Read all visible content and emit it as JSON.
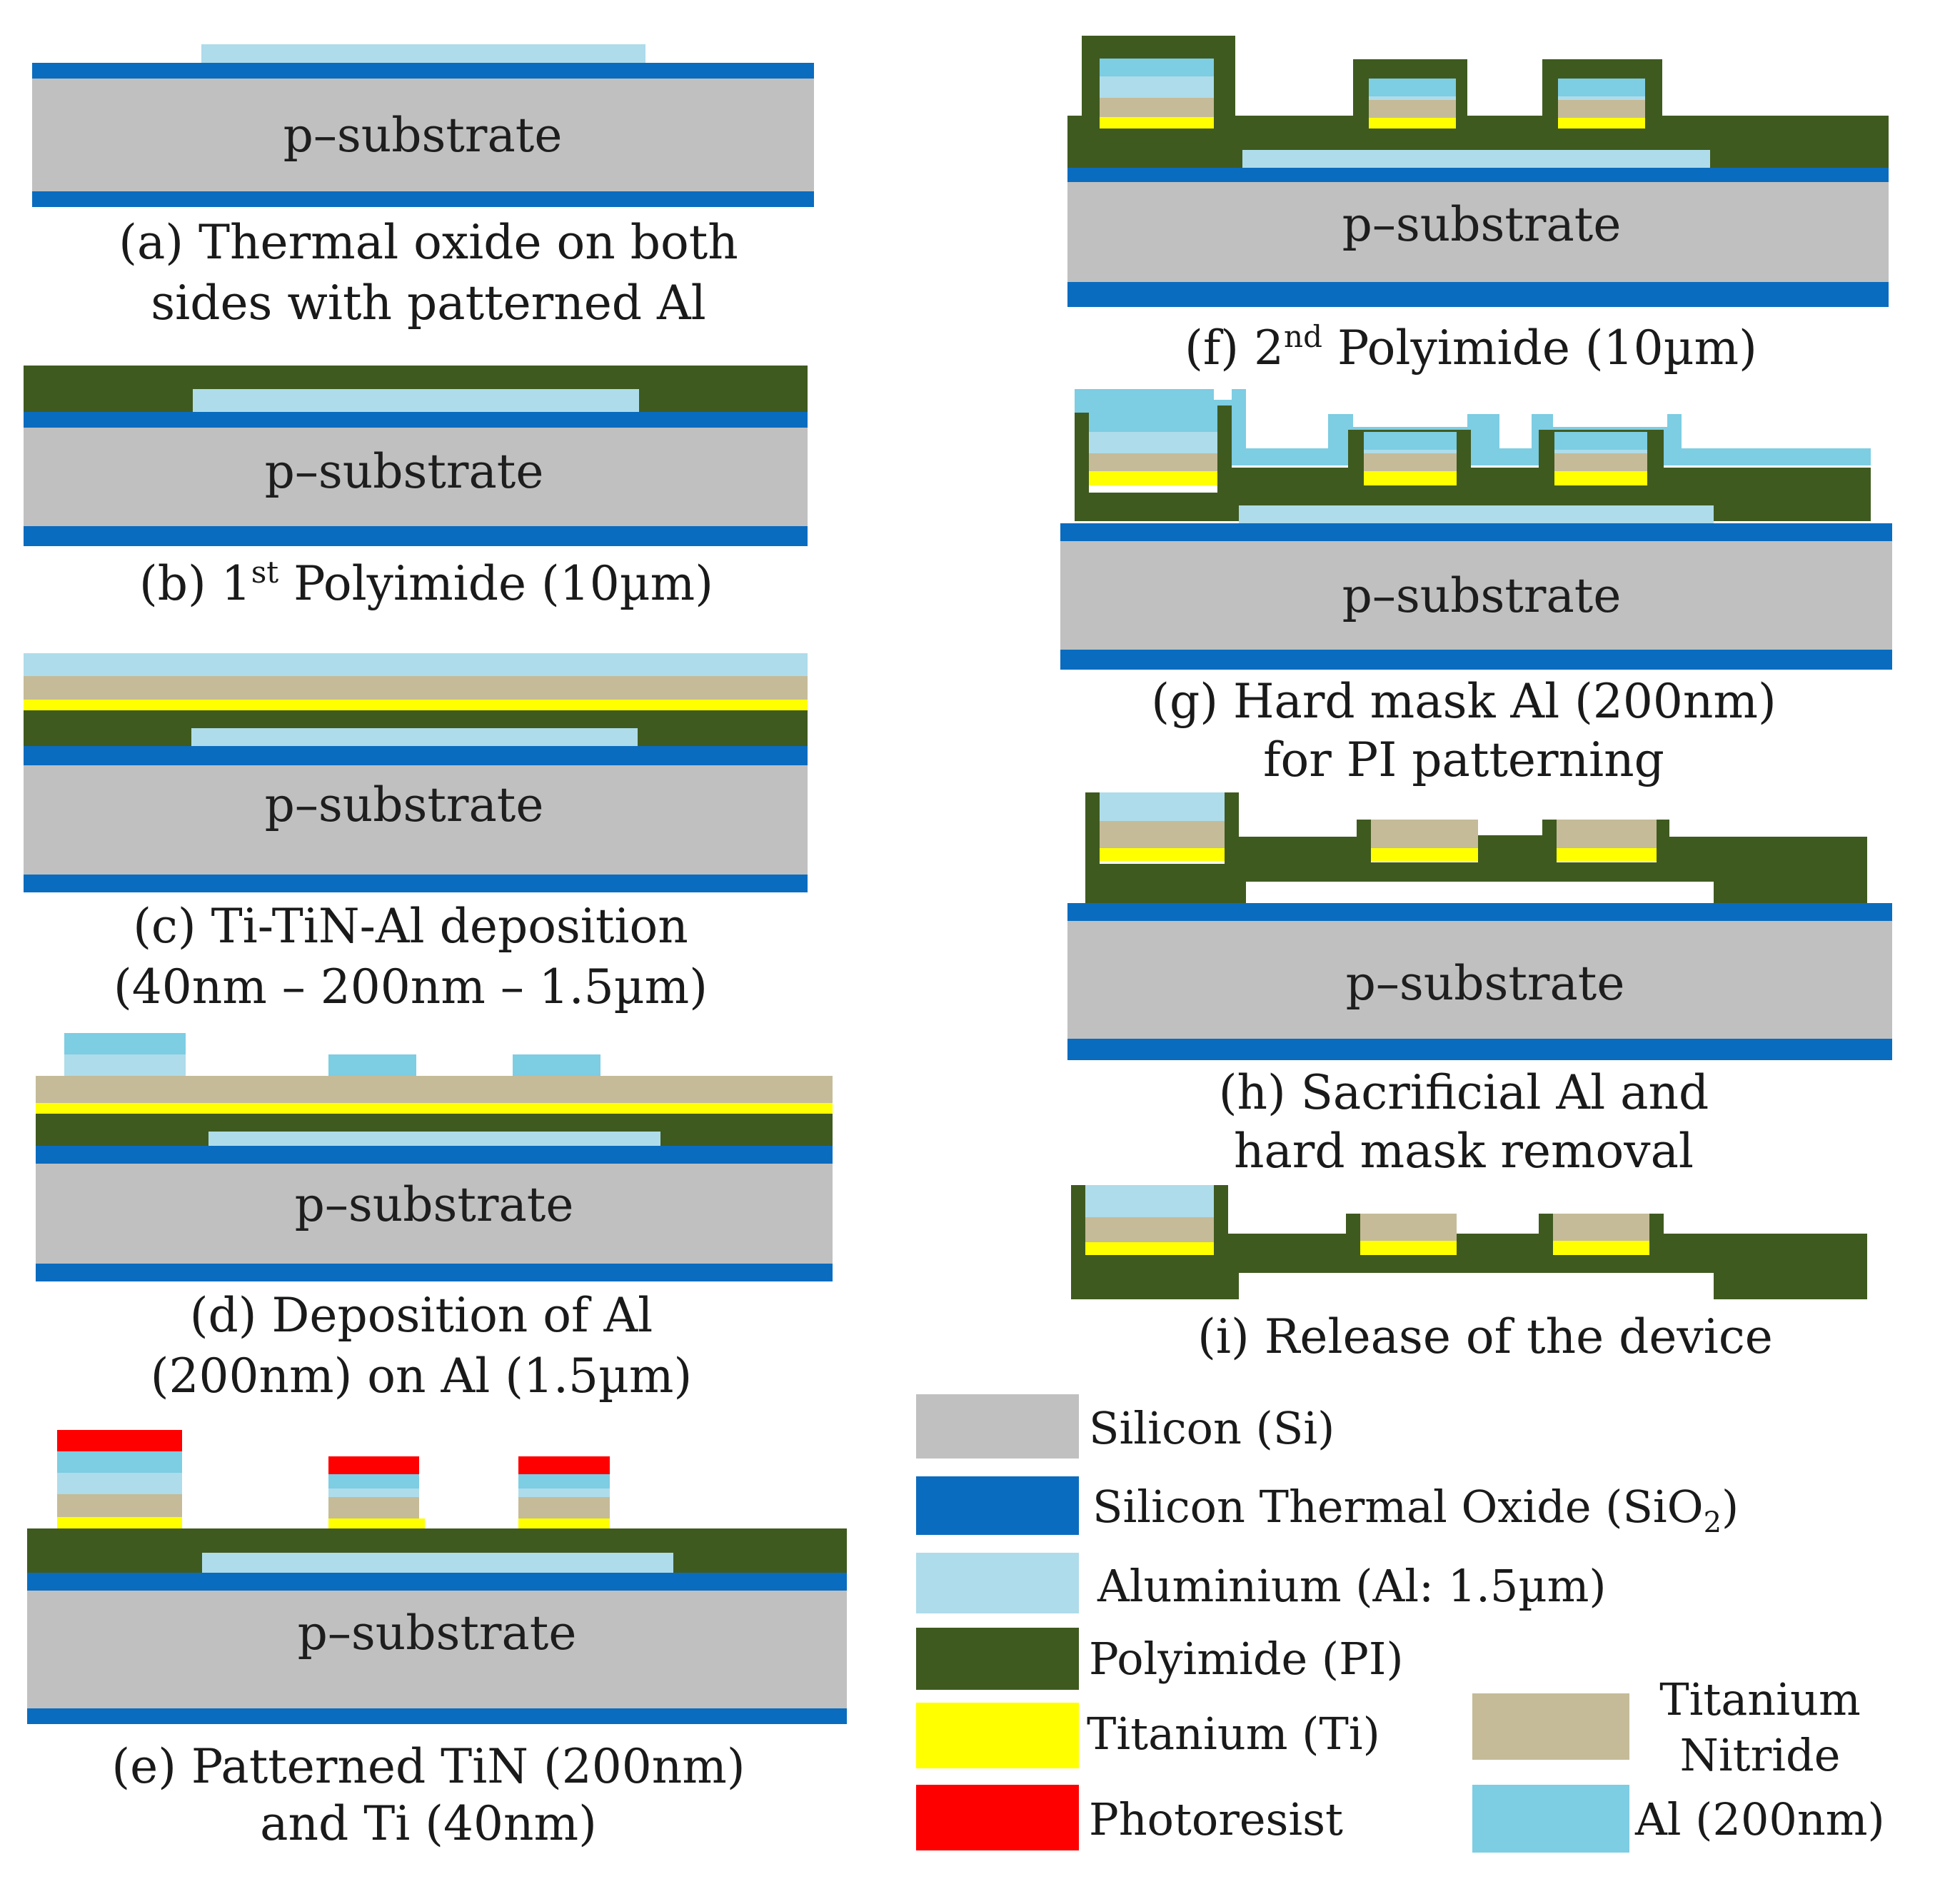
{
  "colors": {
    "silicon": "#c0c0c0",
    "oxide": "#0a6cbf",
    "aluminium": "#aedcea",
    "polyimide": "#3f5a1f",
    "titanium": "#ffff00",
    "titanium_nitride": "#c5bb98",
    "photoresist": "#ff0000",
    "al_thin": "#7dcde3"
  },
  "substrate_label": "p–substrate",
  "steps": [
    {
      "id": "a",
      "caption_lines": [
        "(a) Thermal oxide on both",
        "sides with patterned Al"
      ]
    },
    {
      "id": "b",
      "caption_prefix": "(b) 1",
      "caption_sup": "st",
      "caption_suffix": " Polyimide (10µm)"
    },
    {
      "id": "c",
      "caption_lines": [
        "(c) Ti-TiN-Al deposition",
        "(40nm – 200nm – 1.5µm)"
      ]
    },
    {
      "id": "d",
      "caption_lines": [
        "(d) Deposition of Al",
        "(200nm) on Al (1.5µm)"
      ]
    },
    {
      "id": "e",
      "caption_lines": [
        "(e) Patterned TiN (200nm)",
        "and Ti (40nm)"
      ]
    },
    {
      "id": "f",
      "caption_prefix": "(f) 2",
      "caption_sup": "nd",
      "caption_suffix": " Polyimide (10µm)"
    },
    {
      "id": "g",
      "caption_lines": [
        "(g) Hard mask Al (200nm)",
        "for PI patterning"
      ]
    },
    {
      "id": "h",
      "caption_lines": [
        "(h) Sacrificial Al and",
        "hard mask removal"
      ]
    },
    {
      "id": "i",
      "caption_lines": [
        "(i) Release of the device"
      ]
    }
  ],
  "legend": {
    "silicon": "Silicon (Si)",
    "oxide_main": "Silicon Thermal Oxide (SiO",
    "oxide_sub": "2",
    "oxide_close": ")",
    "aluminium": "Aluminium (Al: 1.5µm)",
    "polyimide": "Polyimide (PI)",
    "titanium": "Titanium (Ti)",
    "photoresist": "Photoresist",
    "tin_line1": "Titanium",
    "tin_line2": "Nitride",
    "al_thin": "Al (200nm)"
  }
}
